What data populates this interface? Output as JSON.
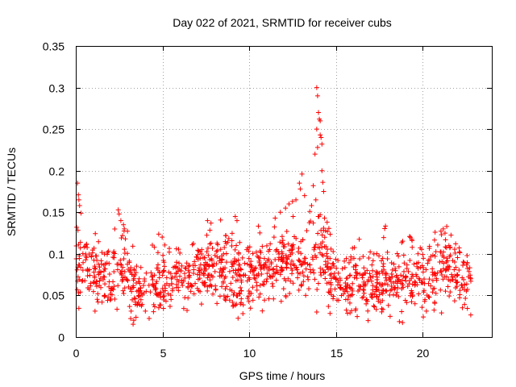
{
  "chart_data": {
    "type": "scatter",
    "title": "Day 022 of 2021, SRMTID for receiver cubs",
    "xlabel": "GPS time / hours",
    "ylabel": "SRMTID / TECUs",
    "xlim": [
      0,
      24
    ],
    "ylim": [
      0,
      0.35
    ],
    "xticks": [
      0,
      5,
      10,
      15,
      20
    ],
    "xtick_labels": [
      "0",
      "5",
      "10",
      "15",
      "20"
    ],
    "yticks": [
      0,
      0.05,
      0.1,
      0.15,
      0.2,
      0.25,
      0.3,
      0.35
    ],
    "ytick_labels": [
      "0",
      "0.05",
      "0.1",
      "0.15",
      "0.2",
      "0.25",
      "0.3",
      "0.35"
    ],
    "grid": true,
    "marker": "+",
    "color": "#ff0000",
    "points_note": "approximately 1300 samples between 0 and 22.8 h, read from the plot",
    "x": [],
    "y": []
  }
}
